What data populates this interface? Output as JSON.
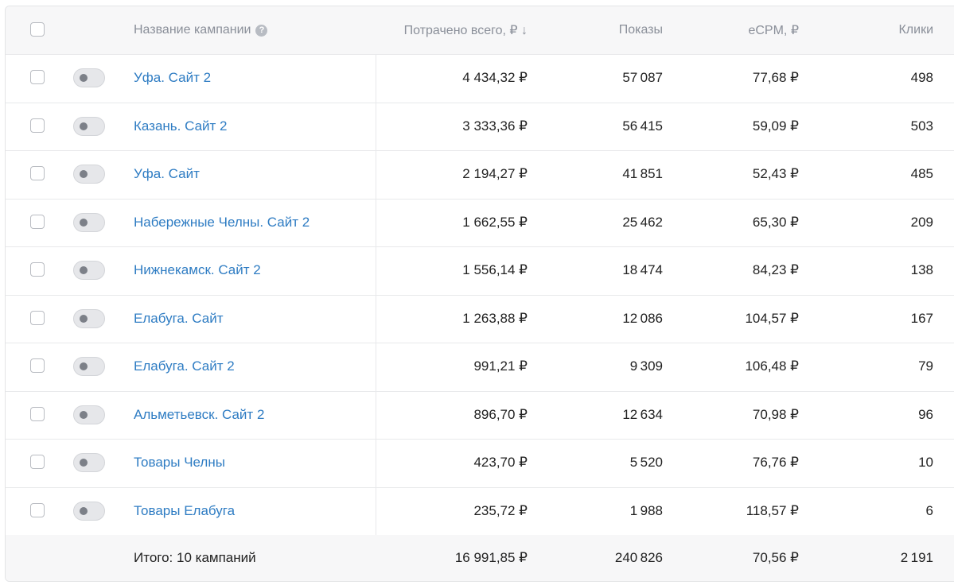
{
  "table": {
    "header": [
      "Название кампании",
      "Потрачено всего, ₽ ↓",
      "Показы",
      "eCPM, ₽",
      "Клики"
    ],
    "rows": [
      [
        "Уфа. Сайт 2",
        "4 434,32 ₽",
        "57 087",
        "77,68 ₽",
        "498"
      ],
      [
        "Казань. Сайт 2",
        "3 333,36 ₽",
        "56 415",
        "59,09 ₽",
        "503"
      ],
      [
        "Уфа. Сайт",
        "2 194,27 ₽",
        "41 851",
        "52,43 ₽",
        "485"
      ],
      [
        "Набережные Челны. Сайт 2",
        "1 662,55 ₽",
        "25 462",
        "65,30 ₽",
        "209"
      ],
      [
        "Нижнекамск. Сайт 2",
        "1 556,14 ₽",
        "18 474",
        "84,23 ₽",
        "138"
      ],
      [
        "Елабуга. Сайт",
        "1 263,88 ₽",
        "12 086",
        "104,57 ₽",
        "167"
      ],
      [
        "Елабуга. Сайт 2",
        "991,21 ₽",
        "9 309",
        "106,48 ₽",
        "79"
      ],
      [
        "Альметьевск. Сайт 2",
        "896,70 ₽",
        "12 634",
        "70,98 ₽",
        "96"
      ],
      [
        "Товары Челны",
        "423,70 ₽",
        "5 520",
        "76,76 ₽",
        "10"
      ],
      [
        "Товары Елабуга",
        "235,72 ₽",
        "1 988",
        "118,57 ₽",
        "6"
      ]
    ],
    "footer": [
      "Итого: 10 кампаний",
      "16 991,85 ₽",
      "240 826",
      "70,56 ₽",
      "2 191"
    ]
  }
}
